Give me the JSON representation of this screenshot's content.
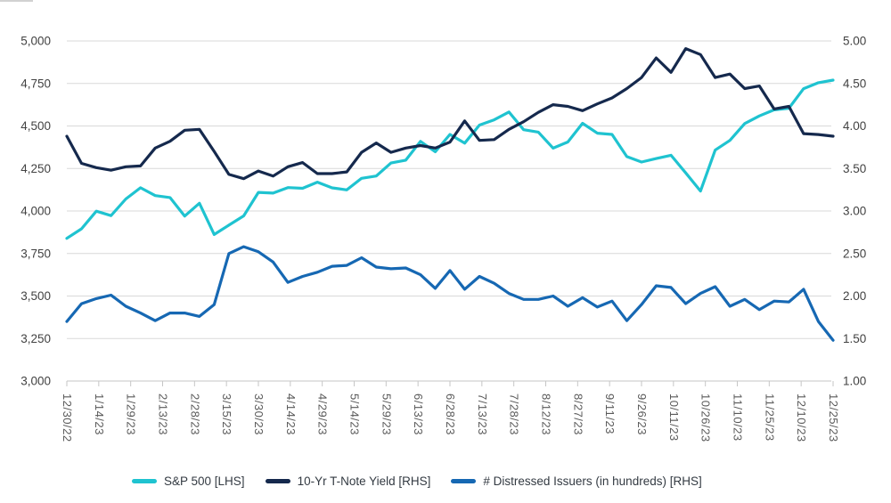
{
  "chart_data": {
    "type": "line",
    "title": "",
    "grid": "horizontal",
    "legend_position": "bottom",
    "x_axis": {
      "rotation_deg": 90,
      "tick_labels": [
        "12/30/22",
        "1/14/23",
        "1/29/23",
        "2/13/23",
        "2/28/23",
        "3/15/23",
        "3/30/23",
        "4/14/23",
        "4/29/23",
        "5/14/23",
        "5/29/23",
        "6/13/23",
        "6/28/23",
        "7/13/23",
        "7/28/23",
        "8/12/23",
        "8/27/23",
        "9/11/23",
        "9/26/23",
        "10/11/23",
        "10/26/23",
        "11/10/23",
        "11/25/23",
        "12/10/23",
        "12/25/23"
      ]
    },
    "left_axis": {
      "min": 3000,
      "max": 5000,
      "step": 250,
      "tick_labels": [
        "3,000",
        "3,250",
        "3,500",
        "3,750",
        "4,000",
        "4,250",
        "4,500",
        "4,750",
        "5,000"
      ]
    },
    "right_axis": {
      "min": 1.0,
      "max": 5.0,
      "step": 0.5,
      "tick_labels": [
        "1.00",
        "1.50",
        "2.00",
        "2.50",
        "3.00",
        "3.50",
        "4.00",
        "4.50",
        "5.00"
      ]
    },
    "series": [
      {
        "name": "S&P 500 [LHS]",
        "axis": "left",
        "color": "#1fc3d0",
        "values": [
          3839.5,
          3895.1,
          3999.1,
          3972.6,
          4070.6,
          4136.5,
          4090.5,
          4079.1,
          3970.0,
          4045.6,
          3861.6,
          3916.6,
          3971.0,
          4109.3,
          4105.0,
          4137.6,
          4133.5,
          4169.5,
          4136.3,
          4124.1,
          4192.0,
          4205.5,
          4282.4,
          4298.9,
          4409.6,
          4348.3,
          4450.4,
          4399.0,
          4505.4,
          4536.3,
          4582.2,
          4478.0,
          4464.1,
          4369.7,
          4405.7,
          4515.8,
          4457.5,
          4450.3,
          4320.1,
          4288.1,
          4308.5,
          4327.8,
          4224.2,
          4117.4,
          4358.3,
          4415.2,
          4514.0,
          4559.3,
          4594.6,
          4604.4,
          4719.2,
          4754.6,
          4769.8
        ]
      },
      {
        "name": "10-Yr T-Note Yield [RHS]",
        "axis": "right",
        "color": "#15294d",
        "values": [
          3.88,
          3.56,
          3.51,
          3.48,
          3.52,
          3.53,
          3.74,
          3.82,
          3.95,
          3.96,
          3.7,
          3.43,
          3.38,
          3.47,
          3.41,
          3.52,
          3.57,
          3.44,
          3.44,
          3.46,
          3.69,
          3.8,
          3.69,
          3.74,
          3.77,
          3.74,
          3.81,
          4.06,
          3.83,
          3.84,
          3.96,
          4.05,
          4.16,
          4.25,
          4.23,
          4.18,
          4.26,
          4.33,
          4.44,
          4.57,
          4.8,
          4.63,
          4.91,
          4.84,
          4.57,
          4.61,
          4.44,
          4.47,
          4.2,
          4.23,
          3.91,
          3.9,
          3.88
        ]
      },
      {
        "name": "# Distressed Issuers (in hundreds) [RHS]",
        "axis": "right",
        "color": "#1668b3",
        "values": [
          1.7,
          1.91,
          1.97,
          2.01,
          1.88,
          1.8,
          1.71,
          1.8,
          1.8,
          1.76,
          1.9,
          2.5,
          2.58,
          2.52,
          2.4,
          2.16,
          2.23,
          2.28,
          2.35,
          2.36,
          2.45,
          2.34,
          2.32,
          2.33,
          2.25,
          2.09,
          2.3,
          2.08,
          2.23,
          2.15,
          2.03,
          1.96,
          1.96,
          2.0,
          1.88,
          1.98,
          1.87,
          1.94,
          1.71,
          1.9,
          2.12,
          2.1,
          1.91,
          2.03,
          2.11,
          1.88,
          1.96,
          1.84,
          1.94,
          1.93,
          2.08,
          1.7,
          1.48
        ]
      }
    ]
  },
  "colors": {
    "gridline": "#d9d9d9",
    "axis_line": "#c6c6c6",
    "y_label": "#424242",
    "x_label": "#595959",
    "legend_text": "#333a42"
  }
}
